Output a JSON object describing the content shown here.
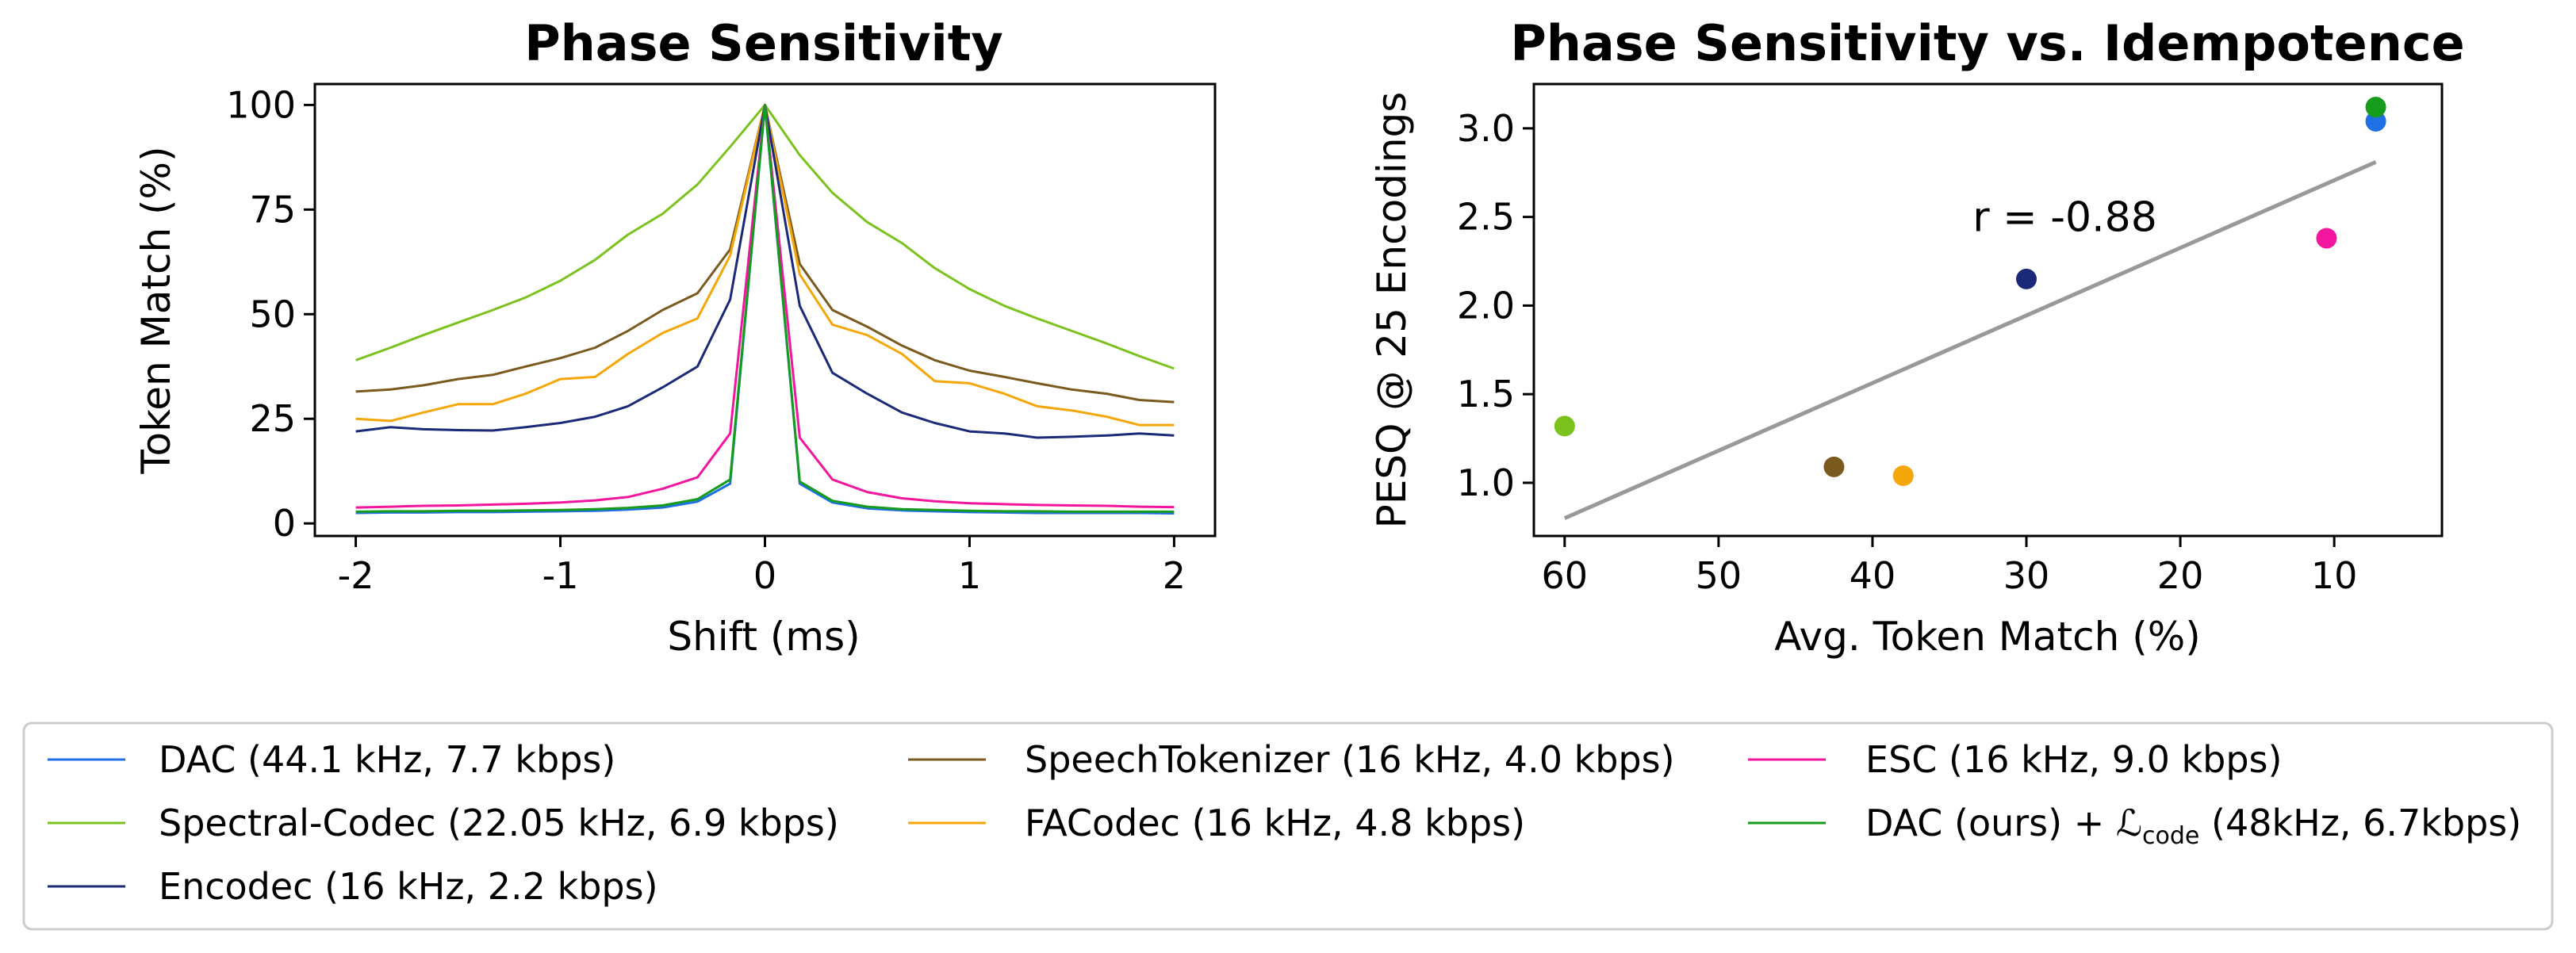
{
  "legend": {
    "entries": [
      {
        "label": "DAC (44.1 kHz, 7.7 kbps)",
        "color": "#1f6fe5"
      },
      {
        "label": "Spectral-Codec (22.05 kHz, 6.9 kbps)",
        "color": "#7cc21f"
      },
      {
        "label": "Encodec (16 kHz, 2.2 kbps)",
        "color": "#1b2a78"
      },
      {
        "label": "SpeechTokenizer (16 kHz, 4.0 kbps)",
        "color": "#7a5a1e"
      },
      {
        "label": "FACodec (16 kHz, 4.8 kbps)",
        "color": "#f5a70a"
      },
      {
        "label": "ESC (16 kHz, 9.0 kbps)",
        "color": "#f2169e"
      },
      {
        "label": "DAC (ours) + ",
        "math": "ℒ",
        "sub": "code",
        "suffix": " (48kHz, 6.7kbps)",
        "color": "#169c1c"
      }
    ]
  },
  "chart_data": [
    {
      "type": "line",
      "title": "Phase Sensitivity",
      "xlabel": "Shift (ms)",
      "ylabel": "Token Match (%)",
      "xlim": [
        -2.2,
        2.2
      ],
      "ylim": [
        -3,
        105
      ],
      "xticks": [
        -2,
        -1,
        0,
        1,
        2
      ],
      "xtick_labels": [
        "-2",
        "-1",
        "0",
        "1",
        "2"
      ],
      "yticks": [
        0,
        25,
        50,
        75,
        100
      ],
      "ytick_labels": [
        "0",
        "25",
        "50",
        "75",
        "100"
      ],
      "grid": false,
      "x": [
        -2.0,
        -1.83,
        -1.67,
        -1.5,
        -1.33,
        -1.17,
        -1.0,
        -0.83,
        -0.67,
        -0.5,
        -0.33,
        -0.17,
        0.0,
        0.17,
        0.33,
        0.5,
        0.67,
        0.83,
        1.0,
        1.17,
        1.33,
        1.5,
        1.67,
        1.83,
        2.0
      ],
      "series": [
        {
          "name": "DAC (44.1 kHz, 7.7 kbps)",
          "color": "#1f6fe5",
          "values": [
            2.5,
            2.6,
            2.6,
            2.7,
            2.7,
            2.8,
            2.9,
            3.0,
            3.3,
            3.8,
            5.2,
            9.5,
            100,
            9.5,
            5.0,
            3.6,
            3.1,
            2.9,
            2.7,
            2.6,
            2.5,
            2.5,
            2.5,
            2.5,
            2.4
          ]
        },
        {
          "name": "Spectral-Codec (22.05 kHz, 6.9 kbps)",
          "color": "#7cc21f",
          "values": [
            39,
            42,
            45,
            48,
            51,
            54,
            58,
            63,
            69,
            74,
            81,
            90,
            100,
            88,
            79,
            72,
            67,
            61,
            56,
            52,
            49,
            46,
            43,
            40,
            37
          ]
        },
        {
          "name": "Encodec (16 kHz, 2.2 kbps)",
          "color": "#1b2a78",
          "values": [
            22,
            23,
            22.5,
            22.3,
            22.2,
            23,
            24,
            25.5,
            28,
            32.5,
            37.5,
            53.5,
            100,
            52,
            36,
            31,
            26.5,
            24,
            22,
            21.5,
            20.5,
            20.7,
            21,
            21.5,
            21
          ]
        },
        {
          "name": "SpeechTokenizer (16 kHz, 4.0 kbps)",
          "color": "#7a5a1e",
          "values": [
            31.5,
            32,
            33,
            34.5,
            35.5,
            37.5,
            39.5,
            42,
            46,
            51,
            55,
            65.5,
            100,
            62,
            51,
            47,
            42.5,
            39,
            36.5,
            35,
            33.5,
            32,
            31,
            29.5,
            29
          ]
        },
        {
          "name": "FACodec (16 kHz, 4.8 kbps)",
          "color": "#f5a70a",
          "values": [
            25,
            24.5,
            26.5,
            28.5,
            28.5,
            31,
            34.5,
            35,
            40.5,
            45.5,
            49,
            64,
            100,
            59.5,
            47.5,
            45,
            40.5,
            34,
            33.5,
            31,
            28,
            27,
            25.5,
            23.5,
            23.5
          ]
        },
        {
          "name": "ESC (16 kHz, 9.0 kbps)",
          "color": "#f2169e",
          "values": [
            3.8,
            4.0,
            4.2,
            4.3,
            4.5,
            4.7,
            5.0,
            5.5,
            6.3,
            8.3,
            11,
            21.5,
            100,
            20.5,
            10.5,
            7.5,
            6.0,
            5.3,
            4.8,
            4.6,
            4.4,
            4.3,
            4.2,
            4.0,
            3.9
          ]
        },
        {
          "name": "DAC (ours) + Lcode (48kHz, 6.7kbps)",
          "color": "#169c1c",
          "values": [
            2.8,
            2.9,
            2.9,
            3.0,
            3.0,
            3.1,
            3.2,
            3.4,
            3.7,
            4.3,
            5.8,
            10.5,
            100,
            10.0,
            5.4,
            4.0,
            3.4,
            3.2,
            3.0,
            2.9,
            2.9,
            2.8,
            2.8,
            2.8,
            2.8
          ]
        }
      ]
    },
    {
      "type": "scatter",
      "title": "Phase Sensitivity vs. Idempotence",
      "xlabel": "Avg. Token Match (%)",
      "ylabel": "PESQ @ 25 Encodings",
      "x_inverted": true,
      "xlim": [
        62,
        3
      ],
      "ylim": [
        0.7,
        3.25
      ],
      "xticks": [
        60,
        50,
        40,
        30,
        20,
        10
      ],
      "xtick_labels": [
        "60",
        "50",
        "40",
        "30",
        "20",
        "10"
      ],
      "yticks": [
        1.0,
        1.5,
        2.0,
        2.5,
        3.0
      ],
      "ytick_labels": [
        "1.0",
        "1.5",
        "2.0",
        "2.5",
        "3.0"
      ],
      "grid": false,
      "points": [
        {
          "series": "Spectral-Codec (22.05 kHz, 6.9 kbps)",
          "x": 60.0,
          "y": 1.32,
          "color": "#7cc21f"
        },
        {
          "series": "SpeechTokenizer (16 kHz, 4.0 kbps)",
          "x": 42.5,
          "y": 1.09,
          "color": "#7a5a1e"
        },
        {
          "series": "FACodec (16 kHz, 4.8 kbps)",
          "x": 38.0,
          "y": 1.04,
          "color": "#f5a70a"
        },
        {
          "series": "Encodec (16 kHz, 2.2 kbps)",
          "x": 30.0,
          "y": 2.15,
          "color": "#1b2a78"
        },
        {
          "series": "ESC (16 kHz, 9.0 kbps)",
          "x": 10.5,
          "y": 2.38,
          "color": "#f2169e"
        },
        {
          "series": "DAC (44.1 kHz, 7.7 kbps)",
          "x": 7.3,
          "y": 3.04,
          "color": "#1f6fe5"
        },
        {
          "series": "DAC (ours) + Lcode (48kHz, 6.7kbps)",
          "x": 7.3,
          "y": 3.12,
          "color": "#169c1c"
        }
      ],
      "fit_line": {
        "x": [
          60.0,
          7.3
        ],
        "y": [
          0.8,
          2.81
        ],
        "color": "#999999"
      },
      "annotation": {
        "text": "r = -0.88",
        "x": 27.5,
        "y": 2.5
      }
    }
  ]
}
